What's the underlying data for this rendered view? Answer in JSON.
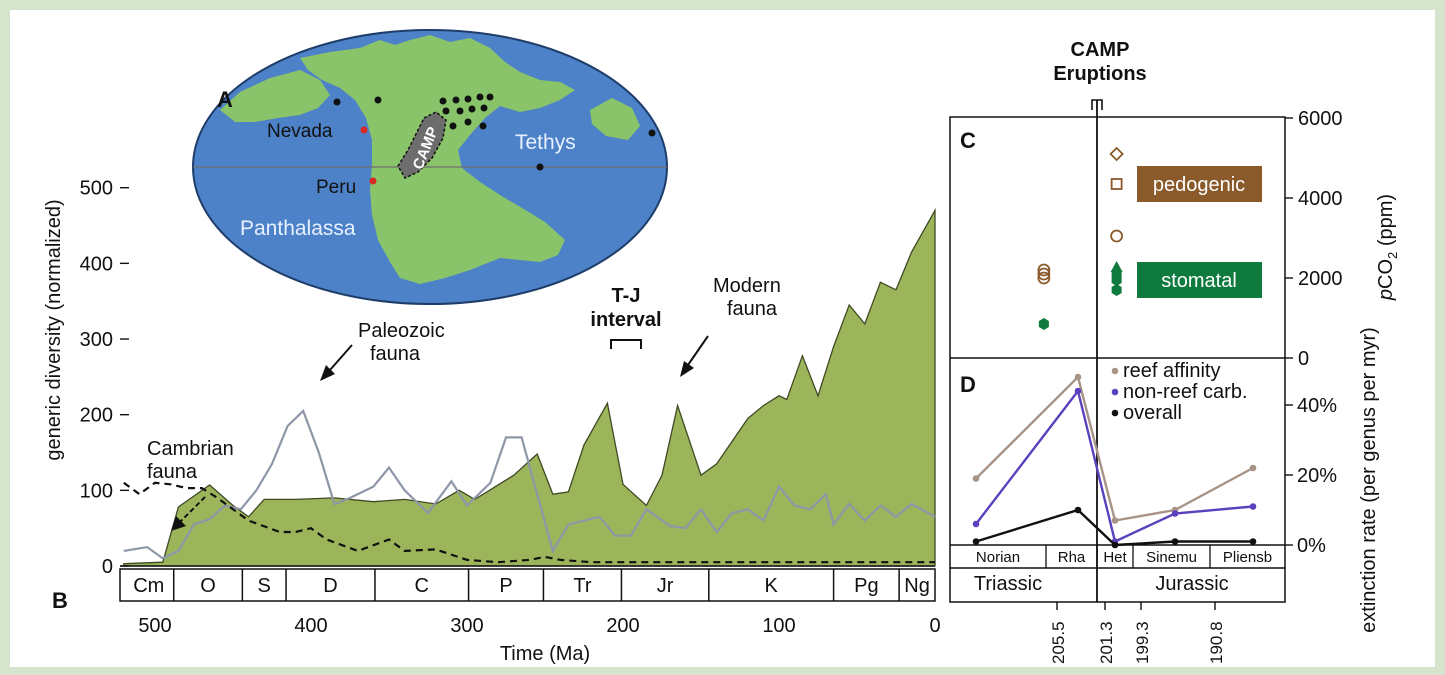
{
  "figure": {
    "panel_labels": [
      "A",
      "B",
      "C",
      "D"
    ],
    "camp_label": [
      "CAMP",
      "Eruptions"
    ]
  },
  "map": {
    "labels": [
      "Nevada",
      "Peru",
      "Panthalassa",
      "Tethys",
      "CAMP"
    ]
  },
  "chart_data": [
    {
      "panel": "B",
      "type": "area",
      "xlabel": "Time (Ma)",
      "ylabel": "generic diversity (normalized)",
      "xlim": [
        520,
        0
      ],
      "ylim": [
        0,
        500
      ],
      "x_ticks": [
        500,
        400,
        300,
        200,
        100,
        0
      ],
      "y_ticks": [
        0,
        100,
        200,
        300,
        400,
        500
      ],
      "series": [
        {
          "name": "Modern fauna",
          "style": "filled-area",
          "color": "#9cb55a",
          "points": [
            [
              520,
              3
            ],
            [
              495,
              5
            ],
            [
              485,
              78
            ],
            [
              465,
              107
            ],
            [
              450,
              80
            ],
            [
              440,
              65
            ],
            [
              430,
              88
            ],
            [
              410,
              88
            ],
            [
              385,
              90
            ],
            [
              360,
              85
            ],
            [
              340,
              88
            ],
            [
              320,
              82
            ],
            [
              305,
              100
            ],
            [
              295,
              88
            ],
            [
              270,
              120
            ],
            [
              255,
              148
            ],
            [
              245,
              95
            ],
            [
              235,
              98
            ],
            [
              225,
              160
            ],
            [
              210,
              215
            ],
            [
              200,
              108
            ],
            [
              185,
              80
            ],
            [
              175,
              120
            ],
            [
              165,
              212
            ],
            [
              150,
              120
            ],
            [
              140,
              135
            ],
            [
              130,
              165
            ],
            [
              120,
              195
            ],
            [
              110,
              212
            ],
            [
              100,
              225
            ],
            [
              95,
              220
            ],
            [
              85,
              278
            ],
            [
              75,
              225
            ],
            [
              65,
              290
            ],
            [
              55,
              345
            ],
            [
              45,
              320
            ],
            [
              35,
              375
            ],
            [
              25,
              365
            ],
            [
              15,
              415
            ],
            [
              0,
              470
            ]
          ]
        },
        {
          "name": "Paleozoic fauna",
          "style": "grey-line",
          "color": "#8d97a7",
          "points": [
            [
              520,
              20
            ],
            [
              505,
              25
            ],
            [
              495,
              10
            ],
            [
              485,
              20
            ],
            [
              475,
              55
            ],
            [
              465,
              62
            ],
            [
              455,
              80
            ],
            [
              445,
              75
            ],
            [
              435,
              100
            ],
            [
              425,
              135
            ],
            [
              415,
              185
            ],
            [
              405,
              205
            ],
            [
              395,
              150
            ],
            [
              385,
              82
            ],
            [
              375,
              90
            ],
            [
              360,
              105
            ],
            [
              350,
              130
            ],
            [
              340,
              100
            ],
            [
              325,
              70
            ],
            [
              310,
              112
            ],
            [
              300,
              80
            ],
            [
              285,
              110
            ],
            [
              275,
              170
            ],
            [
              265,
              170
            ],
            [
              245,
              20
            ],
            [
              235,
              55
            ],
            [
              225,
              60
            ],
            [
              215,
              65
            ],
            [
              205,
              40
            ],
            [
              195,
              40
            ],
            [
              185,
              75
            ],
            [
              170,
              53
            ],
            [
              160,
              50
            ],
            [
              150,
              75
            ],
            [
              140,
              45
            ],
            [
              130,
              70
            ],
            [
              120,
              75
            ],
            [
              110,
              60
            ],
            [
              100,
              105
            ],
            [
              90,
              80
            ],
            [
              80,
              75
            ],
            [
              70,
              95
            ],
            [
              65,
              55
            ],
            [
              55,
              82
            ],
            [
              45,
              60
            ],
            [
              35,
              80
            ],
            [
              25,
              65
            ],
            [
              15,
              82
            ],
            [
              0,
              65
            ]
          ]
        },
        {
          "name": "Cambrian fauna",
          "style": "dashed-line",
          "color": "#111111",
          "points": [
            [
              520,
              110
            ],
            [
              510,
              95
            ],
            [
              500,
              110
            ],
            [
              490,
              108
            ],
            [
              480,
              103
            ],
            [
              470,
              103
            ],
            [
              460,
              90
            ],
            [
              440,
              60
            ],
            [
              420,
              45
            ],
            [
              410,
              45
            ],
            [
              400,
              50
            ],
            [
              390,
              35
            ],
            [
              370,
              20
            ],
            [
              350,
              35
            ],
            [
              340,
              20
            ],
            [
              320,
              22
            ],
            [
              300,
              8
            ],
            [
              280,
              5
            ],
            [
              260,
              8
            ],
            [
              250,
              12
            ],
            [
              240,
              8
            ],
            [
              220,
              5
            ],
            [
              0,
              5
            ]
          ]
        }
      ],
      "periods": [
        {
          "label": "Cm",
          "start": 520,
          "end": 488
        },
        {
          "label": "O",
          "start": 488,
          "end": 444
        },
        {
          "label": "S",
          "start": 444,
          "end": 416
        },
        {
          "label": "D",
          "start": 416,
          "end": 359
        },
        {
          "label": "C",
          "start": 359,
          "end": 299
        },
        {
          "label": "P",
          "start": 299,
          "end": 251
        },
        {
          "label": "Tr",
          "start": 251,
          "end": 201
        },
        {
          "label": "Jr",
          "start": 201,
          "end": 145
        },
        {
          "label": "K",
          "start": 145,
          "end": 65
        },
        {
          "label": "Pg",
          "start": 65,
          "end": 23
        },
        {
          "label": "Ng",
          "start": 23,
          "end": 0
        }
      ],
      "annotations": [
        {
          "text": [
            "Cambrian",
            "fauna"
          ]
        },
        {
          "text": [
            "Paleozoic",
            "fauna"
          ]
        },
        {
          "text": [
            "T-J",
            "interval"
          ]
        },
        {
          "text": [
            "Modern",
            "fauna"
          ]
        }
      ]
    },
    {
      "panel": "C",
      "type": "scatter",
      "ylabel": "pCO2 (ppm)",
      "ylim": [
        0,
        6000
      ],
      "y_ticks": [
        0,
        2000,
        4000,
        6000
      ],
      "series": [
        {
          "name": "pedogenic",
          "color": "#8a5a2b",
          "points": [
            [
              204.5,
              2000
            ],
            [
              204.5,
              2100
            ],
            [
              204.5,
              2200
            ],
            [
              200.6,
              5100
            ],
            [
              200.6,
              4350
            ],
            [
              200.6,
              3050
            ]
          ]
        },
        {
          "name": "stomatal",
          "color": "#0f7a3d",
          "points": [
            [
              204.5,
              850
            ],
            [
              200.6,
              2250
            ],
            [
              200.6,
              2100
            ],
            [
              200.6,
              1950
            ],
            [
              200.6,
              1700
            ]
          ]
        }
      ]
    },
    {
      "panel": "D",
      "type": "line",
      "ylabel": "extinction rate (per genus per myr)",
      "ylim": [
        0,
        45
      ],
      "y_ticks": [
        "0%",
        "20%",
        "40%"
      ],
      "stages": [
        "Norian",
        "Rha",
        "Het",
        "Sinemu",
        "Pliensb"
      ],
      "series": [
        {
          "name": "reef affinity",
          "color": "#a89486",
          "values": [
            19,
            48,
            7,
            10,
            22
          ]
        },
        {
          "name": "non-reef carb.",
          "color": "#5b41bd",
          "values": [
            6,
            44,
            1,
            9,
            11
          ]
        },
        {
          "name": "overall",
          "color": "#111111",
          "values": [
            1,
            10,
            0,
            1,
            1
          ]
        }
      ],
      "periods": [
        "Triassic",
        "Jurassic"
      ],
      "x_ticks": [
        "205.5",
        "201.3",
        "199.3",
        "190.8"
      ]
    }
  ]
}
